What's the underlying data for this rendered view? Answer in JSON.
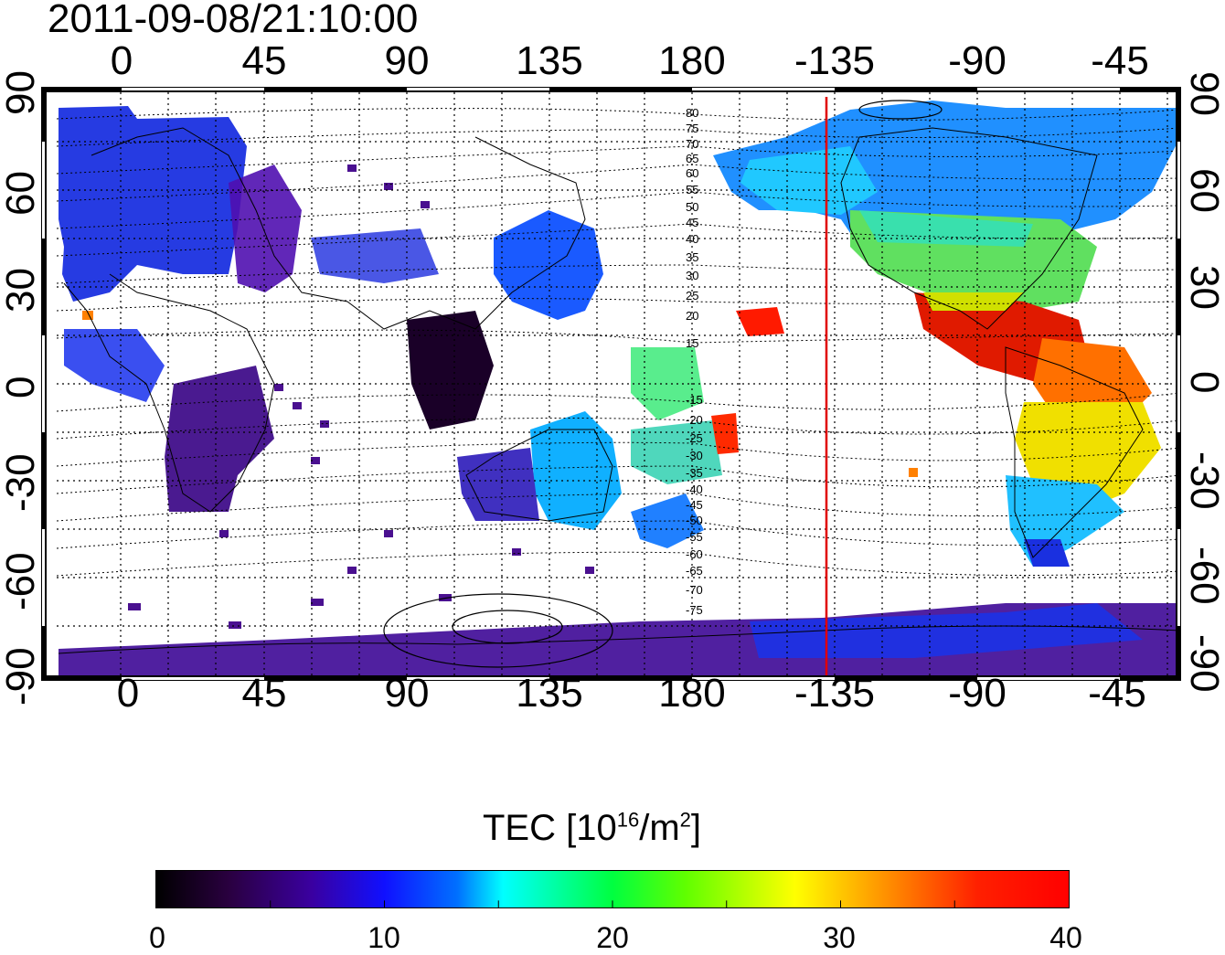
{
  "title": "2011-09-08/21:10:00",
  "map": {
    "projection": "equirectangular",
    "central_longitude": 135,
    "x_ticks_top": [
      "0",
      "45",
      "90",
      "135",
      "180",
      "-135",
      "-90",
      "-45"
    ],
    "x_ticks_bottom": [
      "0",
      "45",
      "90",
      "135",
      "180",
      "-135",
      "-90",
      "-45"
    ],
    "y_ticks_left": [
      "90",
      "60",
      "30",
      "0",
      "-30",
      "-60",
      "-90"
    ],
    "y_ticks_right": [
      "90",
      "60",
      "30",
      "0",
      "-30",
      "-60",
      "-90"
    ],
    "grid": "dotted, 15 degree",
    "marker_line": {
      "longitude": -140,
      "color": "#e00000"
    },
    "contour_labels_north": [
      "80",
      "75",
      "70",
      "65",
      "60",
      "55",
      "50",
      "45",
      "40",
      "35",
      "30",
      "25",
      "20",
      "15"
    ],
    "contour_labels_south": [
      "-15",
      "-20",
      "-25",
      "-30",
      "-35",
      "-40",
      "-45",
      "-50",
      "-55",
      "-60",
      "-65",
      "-70",
      "-75"
    ]
  },
  "colorbar": {
    "title_text": "TEC  [10",
    "title_sup1": "16",
    "title_mid": "/m",
    "title_sup2": "2",
    "title_end": "]",
    "ticks": [
      "0",
      "10",
      "20",
      "30",
      "40"
    ],
    "range": [
      0,
      40
    ],
    "colormap": [
      "#000000",
      "#3a005a",
      "#4000c0",
      "#0010ff",
      "#00a0ff",
      "#00ffff",
      "#00ff60",
      "#40ff00",
      "#c0ff00",
      "#ffff00",
      "#ffa000",
      "#ff4000",
      "#ff0000"
    ]
  },
  "tec_regions": [
    {
      "name": "europe-asia-north",
      "tec": 8
    },
    {
      "name": "north-america",
      "tec": 22
    },
    {
      "name": "central-america",
      "tec": 38
    },
    {
      "name": "south-america",
      "tec": 32
    },
    {
      "name": "australia",
      "tec": 16
    },
    {
      "name": "southeast-asia",
      "tec": 2
    },
    {
      "name": "africa",
      "tec": 5
    },
    {
      "name": "antarctica",
      "tec": 6
    }
  ]
}
